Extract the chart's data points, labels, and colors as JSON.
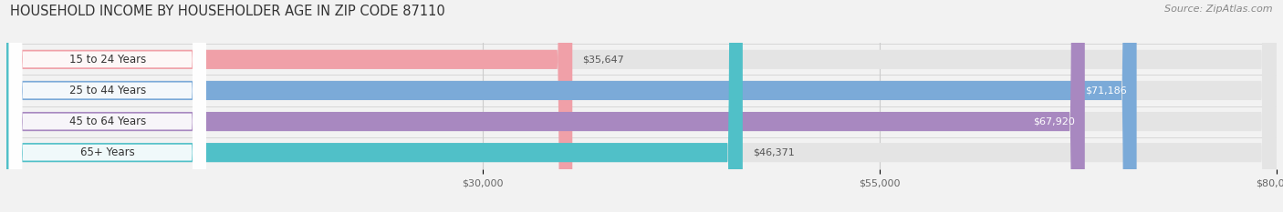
{
  "title": "HOUSEHOLD INCOME BY HOUSEHOLDER AGE IN ZIP CODE 87110",
  "source": "Source: ZipAtlas.com",
  "categories": [
    "15 to 24 Years",
    "25 to 44 Years",
    "45 to 64 Years",
    "65+ Years"
  ],
  "values": [
    35647,
    71186,
    67920,
    46371
  ],
  "colors": [
    "#f0a0a8",
    "#7baad8",
    "#a888c0",
    "#50c0c8"
  ],
  "bar_height": 0.62,
  "xmin": 0,
  "xmax": 80000,
  "xticks": [
    30000,
    55000,
    80000
  ],
  "xtick_labels": [
    "$30,000",
    "$55,000",
    "$80,000"
  ],
  "value_labels": [
    "$35,647",
    "$71,186",
    "$67,920",
    "$46,371"
  ],
  "value_inside": [
    false,
    true,
    true,
    false
  ],
  "bg_color": "#f2f2f2",
  "bar_bg_color": "#e4e4e4",
  "label_bg_color": "#ffffff",
  "title_fontsize": 10.5,
  "source_fontsize": 8,
  "tick_fontsize": 8,
  "value_fontsize": 8,
  "cat_fontsize": 8.5,
  "grid_color": "#cccccc"
}
